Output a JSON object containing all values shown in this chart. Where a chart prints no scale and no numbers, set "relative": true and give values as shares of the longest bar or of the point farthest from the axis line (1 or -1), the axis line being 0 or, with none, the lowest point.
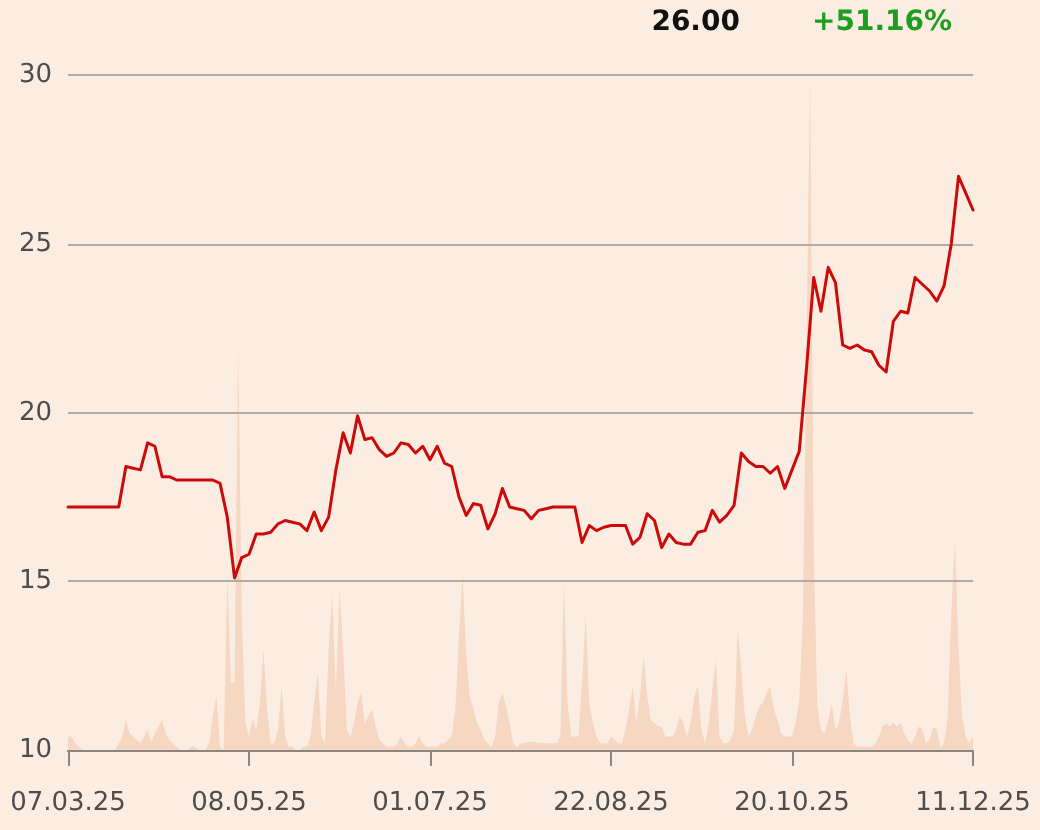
{
  "chart_data": [
    {
      "type": "line",
      "annotations": [
        "26.00",
        "+51.16%"
      ],
      "categories": [
        "07.03.25",
        null,
        null,
        null,
        null,
        null,
        null,
        null,
        null,
        null,
        null,
        null,
        null,
        null,
        null,
        null,
        null,
        null,
        null,
        null,
        null,
        null,
        null,
        null,
        null,
        "08.05.25",
        null,
        null,
        null,
        null,
        null,
        null,
        null,
        null,
        null,
        null,
        null,
        null,
        null,
        null,
        null,
        null,
        null,
        null,
        null,
        null,
        null,
        null,
        null,
        null,
        "01.07.25",
        null,
        null,
        null,
        null,
        null,
        null,
        null,
        null,
        null,
        null,
        null,
        null,
        null,
        null,
        null,
        null,
        null,
        null,
        null,
        null,
        null,
        null,
        null,
        null,
        "22.08.25",
        null,
        null,
        null,
        null,
        null,
        null,
        null,
        null,
        null,
        null,
        null,
        null,
        null,
        null,
        null,
        null,
        null,
        null,
        null,
        null,
        null,
        null,
        null,
        null,
        "20.10.25",
        null,
        null,
        null,
        null,
        null,
        null,
        null,
        null,
        null,
        null,
        null,
        null,
        null,
        null,
        null,
        null,
        null,
        null,
        null,
        null,
        null,
        null,
        null,
        null,
        "11.12.25"
      ],
      "series": [
        {
          "color": "#cc0a0a",
          "values": [
            17.2,
            17.2,
            17.2,
            17.2,
            17.2,
            17.2,
            17.2,
            17.2,
            18.4,
            18.35,
            18.3,
            19.1,
            19.0,
            18.1,
            18.1,
            18.0,
            18.0,
            18.0,
            18.0,
            18.0,
            18.0,
            17.9,
            16.9,
            15.1,
            15.7,
            15.8,
            16.4,
            16.4,
            16.45,
            16.7,
            16.8,
            16.75,
            16.7,
            16.5,
            17.05,
            16.5,
            16.9,
            18.3,
            19.4,
            18.8,
            19.9,
            19.2,
            19.25,
            18.9,
            18.7,
            18.8,
            19.1,
            19.05,
            18.8,
            19.0,
            18.6,
            19.0,
            18.5,
            18.4,
            17.5,
            16.95,
            17.3,
            17.25,
            16.55,
            17.0,
            17.75,
            17.2,
            17.15,
            17.1,
            16.85,
            17.1,
            17.15,
            17.2,
            17.2,
            17.2,
            17.2,
            16.15,
            16.65,
            16.5,
            16.6,
            16.65,
            16.65,
            16.65,
            16.1,
            16.3,
            17.0,
            16.8,
            16.0,
            16.4,
            16.15,
            16.1,
            16.1,
            16.45,
            16.5,
            17.1,
            16.75,
            16.95,
            17.25,
            18.8,
            18.55,
            18.4,
            18.4,
            18.2,
            18.4,
            17.75,
            18.3,
            18.85,
            21.3,
            24.0,
            23.0,
            24.3,
            23.85,
            22.0,
            21.9,
            22.0,
            21.85,
            21.8,
            21.4,
            21.2,
            22.7,
            23.0,
            22.95,
            24.0,
            23.8,
            23.6,
            23.3,
            23.75,
            25.0,
            27.0,
            26.5,
            26.0
          ]
        }
      ],
      "ylim": [
        10,
        30
      ],
      "yticks": [
        10,
        15,
        20,
        25,
        30
      ],
      "grid": "y"
    },
    {
      "type": "area",
      "relative": true,
      "tick_labels": false,
      "categories": [
        "07.03.25",
        null,
        null,
        null,
        null,
        null,
        null,
        null,
        null,
        null,
        null,
        null,
        null,
        null,
        null,
        null,
        null,
        null,
        null,
        null,
        null,
        null,
        null,
        null,
        null,
        null,
        null,
        null,
        null,
        null,
        null,
        null,
        null,
        null,
        null,
        null,
        null,
        null,
        null,
        null,
        null,
        null,
        null,
        null,
        null,
        null,
        null,
        null,
        null,
        null,
        "08.05.25",
        null,
        null,
        null,
        null,
        null,
        null,
        null,
        null,
        null,
        null,
        null,
        null,
        null,
        null,
        null,
        null,
        null,
        null,
        null,
        null,
        null,
        null,
        null,
        null,
        null,
        null,
        null,
        null,
        null,
        null,
        null,
        null,
        null,
        null,
        null,
        null,
        null,
        null,
        null,
        null,
        null,
        null,
        null,
        null,
        null,
        null,
        null,
        null,
        null,
        "01.07.25",
        null,
        null,
        null,
        null,
        null,
        null,
        null,
        null,
        null,
        null,
        null,
        null,
        null,
        null,
        null,
        null,
        null,
        null,
        null,
        null,
        null,
        null,
        null,
        null,
        null,
        null,
        null,
        null,
        null,
        null,
        null,
        null,
        null,
        null,
        null,
        null,
        null,
        null,
        null,
        null,
        null,
        null,
        null,
        null,
        null,
        null,
        null,
        null,
        null,
        "22.08.25",
        null,
        null,
        null,
        null,
        null,
        null,
        null,
        null,
        null,
        null,
        null,
        null,
        null,
        null,
        null,
        null,
        null,
        null,
        null,
        null,
        null,
        null,
        null,
        null,
        null,
        null,
        null,
        null,
        null,
        null,
        null,
        null,
        null,
        null,
        null,
        null,
        null,
        null,
        null,
        null,
        null,
        null,
        null,
        null,
        null,
        null,
        null,
        null,
        null,
        "20.10.25",
        null,
        null,
        null,
        null,
        null,
        null,
        null,
        null,
        null,
        null,
        null,
        null,
        null,
        null,
        null,
        null,
        null,
        null,
        null,
        null,
        null,
        null,
        null,
        null,
        null,
        null,
        null,
        null,
        null,
        null,
        null,
        null,
        null,
        null,
        null,
        null,
        null,
        null,
        null,
        null,
        null,
        null,
        null,
        null,
        null,
        null,
        null,
        null,
        null,
        "11.12.25"
      ],
      "series": [
        {
          "color": "#f6d7c1",
          "values": [
            0.02,
            0.02,
            0.01,
            0.005,
            0,
            0,
            0,
            0,
            0,
            0,
            0,
            0,
            0,
            0,
            0.01,
            0.02,
            0.045,
            0.025,
            0.02,
            0.015,
            0.01,
            0.02,
            0.03,
            0.012,
            0.025,
            0.035,
            0.045,
            0.025,
            0.015,
            0.01,
            0.005,
            0,
            0,
            0,
            0.005,
            0.005,
            0,
            0,
            0,
            0.01,
            0.05,
            0.08,
            0.005,
            0,
            0.26,
            0.1,
            0.1,
            0.6,
            0.2,
            0.04,
            0.02,
            0.045,
            0.03,
            0.07,
            0.15,
            0.06,
            0.01,
            0.01,
            0.03,
            0.095,
            0.02,
            0.005,
            0.005,
            0,
            0,
            0.005,
            0.005,
            0.02,
            0.07,
            0.115,
            0.02,
            0.01,
            0.15,
            0.23,
            0.085,
            0.24,
            0.15,
            0.03,
            0.02,
            0.04,
            0.07,
            0.085,
            0.04,
            0.05,
            0.06,
            0.035,
            0.015,
            0.01,
            0.005,
            0.005,
            0.005,
            0.01,
            0.02,
            0.01,
            0.005,
            0.005,
            0.01,
            0.02,
            0.01,
            0.005,
            0.005,
            0.005,
            0.005,
            0.01,
            0.01,
            0.015,
            0.02,
            0.06,
            0.17,
            0.26,
            0.14,
            0.08,
            0.06,
            0.04,
            0.03,
            0.015,
            0.01,
            0.005,
            0.02,
            0.07,
            0.085,
            0.065,
            0.04,
            0.01,
            0.005,
            0.01,
            0.01,
            0.012,
            0.012,
            0.012,
            0.01,
            0.012,
            0.01,
            0.01,
            0.01,
            0.01,
            0.02,
            0.25,
            0.07,
            0.02,
            0.02,
            0.02,
            0.1,
            0.2,
            0.07,
            0.04,
            0.02,
            0.01,
            0.01,
            0.01,
            0.02,
            0.015,
            0.01,
            0.01,
            0.03,
            0.06,
            0.095,
            0.04,
            0.08,
            0.14,
            0.08,
            0.045,
            0.04,
            0.035,
            0.035,
            0.02,
            0.02,
            0.02,
            0.03,
            0.05,
            0.04,
            0.02,
            0.04,
            0.08,
            0.095,
            0.03,
            0.01,
            0.04,
            0.09,
            0.135,
            0.02,
            0.01,
            0.01,
            0.015,
            0.03,
            0.18,
            0.12,
            0.05,
            0.02,
            0.03,
            0.05,
            0.065,
            0.07,
            0.085,
            0.095,
            0.06,
            0.045,
            0.025,
            0.02,
            0.02,
            0.02,
            0.04,
            0.074,
            0.2,
            0.6,
            1,
            0.3,
            0.065,
            0.03,
            0.025,
            0.045,
            0.069,
            0.03,
            0.04,
            0.075,
            0.12,
            0.05,
            0.01,
            0.005,
            0.005,
            0.005,
            0.005,
            0.005,
            0.01,
            0.02,
            0.035,
            0.04,
            0.035,
            0.04,
            0.035,
            0.04,
            0.025,
            0.015,
            0.01,
            0.02,
            0.035,
            0.03,
            0.01,
            0.015,
            0.035,
            0.03,
            0.005,
            0.01,
            0.05,
            0.2,
            0.315,
            0.15,
            0.05,
            0.02,
            0.01,
            0.02
          ]
        }
      ]
    }
  ]
}
